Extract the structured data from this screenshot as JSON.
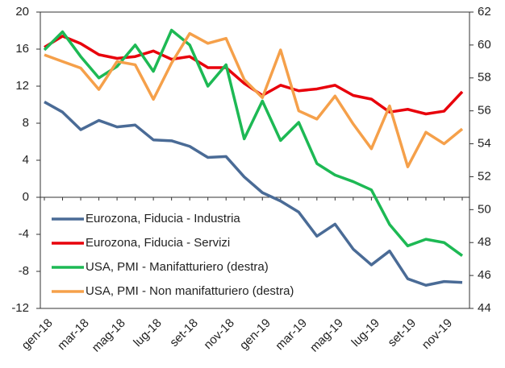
{
  "chart_data": {
    "type": "line",
    "categories": [
      "gen-18",
      null,
      "mar-18",
      null,
      "mag-18",
      null,
      "lug-18",
      null,
      "set-18",
      null,
      "nov-18",
      null,
      "gen-19",
      null,
      "mar-19",
      null,
      "mag-19",
      null,
      "lug-19",
      null,
      "set-19",
      null,
      "nov-19",
      null
    ],
    "series": [
      {
        "name": "Eurozona, Fiducia - Industria",
        "color": "#4a6b96",
        "values": [
          10.3,
          9.2,
          7.3,
          8.3,
          7.6,
          7.8,
          6.2,
          6.1,
          5.5,
          4.3,
          4.4,
          2.2,
          0.5,
          -0.4,
          -1.6,
          -4.2,
          -2.9,
          -5.6,
          -7.3,
          -5.8,
          -8.8,
          -9.5,
          -9.1,
          -9.2
        ]
      },
      {
        "name": "Eurozona, Fiducia - Servizi",
        "color": "#e8000b",
        "values": [
          16.2,
          17.4,
          16.6,
          15.4,
          15.0,
          15.2,
          15.8,
          14.9,
          15.2,
          14.0,
          14.0,
          12.3,
          11.0,
          12.1,
          11.5,
          11.7,
          12.1,
          11.0,
          10.6,
          9.2,
          9.5,
          9.0,
          9.3,
          11.4
        ]
      },
      {
        "name": "USA, PMI - Manifatturiero  (destra)",
        "color": "#1db954",
        "axis": "y2",
        "values": [
          59.7,
          60.8,
          59.3,
          58.0,
          58.7,
          60.0,
          58.4,
          60.9,
          60.0,
          57.5,
          58.8,
          54.3,
          56.6,
          54.2,
          55.3,
          52.8,
          52.1,
          51.7,
          51.2,
          49.1,
          47.8,
          48.2,
          48.0,
          47.2
        ]
      },
      {
        "name": "USA, PMI - Non manifatturiero  (destra)",
        "color": "#f5a04a",
        "axis": "y2",
        "values": [
          59.4,
          59.0,
          58.6,
          57.3,
          59.0,
          58.8,
          56.7,
          58.9,
          60.7,
          60.1,
          60.4,
          57.9,
          56.8,
          59.7,
          56.0,
          55.5,
          56.9,
          55.2,
          53.7,
          56.3,
          52.6,
          54.7,
          54.0,
          54.9
        ]
      }
    ],
    "ylim": [
      -12,
      20
    ],
    "yticks": [
      -12,
      -8,
      -4,
      0,
      4,
      8,
      12,
      16,
      20
    ],
    "y2lim": [
      44,
      62
    ],
    "y2ticks": [
      44,
      46,
      48,
      50,
      52,
      54,
      56,
      58,
      60,
      62
    ]
  }
}
